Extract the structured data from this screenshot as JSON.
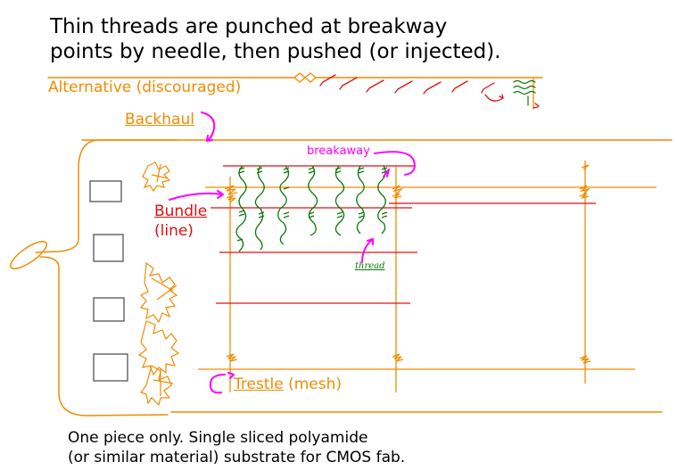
{
  "title": {
    "line1": "Thin threads are punched at breakway",
    "line2": "points by needle, then pushed (or injected)."
  },
  "labels": {
    "alternative": "Alternative (discouraged)",
    "backhaul": "Backhaul",
    "bundle": "Bundle",
    "bundle_sub": "(line)",
    "trestle": "Trestle",
    "trestle_sub": " (mesh)",
    "breakaway": "breakaway",
    "thread": "thread"
  },
  "footer": {
    "line1": "One piece only. Single sliced polyamide",
    "line2": "(or similar material) substrate for CMOS fab."
  },
  "colors": {
    "orange": "#f08c00",
    "red": "#e01010",
    "magenta": "#ff00ff",
    "green": "#0a7a0a",
    "text": "#000000"
  }
}
